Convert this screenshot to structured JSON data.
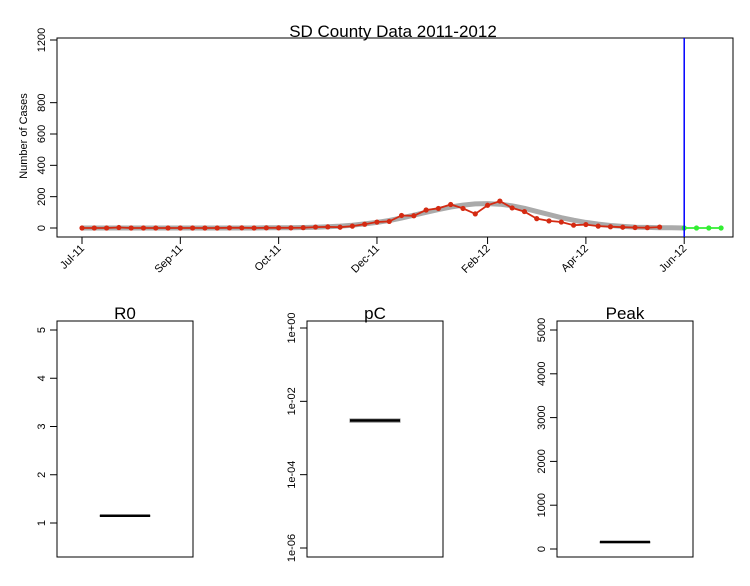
{
  "chart_data": [
    {
      "type": "line",
      "title": "SD County Data 2011-2012",
      "ylabel": "Number of Cases",
      "xlabel": "",
      "ylim": [
        0,
        1200
      ],
      "yticks": [
        0,
        200,
        400,
        600,
        800,
        1200
      ],
      "xticks": [
        "Jul-11",
        "Sep-11",
        "Oct-11",
        "Dec-11",
        "Feb-12",
        "Apr-12",
        "Jun-12"
      ],
      "xtick_week_index": [
        0,
        8,
        16,
        24,
        33,
        41,
        49
      ],
      "vline_week_index": 49,
      "series": [
        {
          "color": "#d42a12",
          "style": "line+points",
          "values": [
            0,
            0,
            0,
            3,
            0,
            0,
            0,
            0,
            0,
            0,
            0,
            0,
            1,
            1,
            0,
            1,
            1,
            1,
            2,
            6,
            7,
            5,
            12,
            24,
            38,
            42,
            80,
            78,
            115,
            125,
            150,
            125,
            90,
            145,
            172,
            128,
            105,
            60,
            45,
            38,
            18,
            22,
            12,
            8,
            5,
            3,
            2,
            6
          ]
        },
        {
          "color": "#aaaaaa",
          "style": "smooth-fit",
          "values": [
            0,
            0,
            0,
            0,
            0,
            0,
            0,
            0,
            0,
            0,
            0,
            0,
            0,
            0,
            0,
            1,
            1,
            2,
            3,
            5,
            8,
            12,
            18,
            26,
            36,
            48,
            64,
            82,
            100,
            118,
            134,
            146,
            154,
            156,
            152,
            142,
            126,
            106,
            86,
            66,
            50,
            36,
            25,
            16,
            10,
            6,
            4,
            2,
            1,
            0
          ]
        },
        {
          "color": "#33ee33",
          "style": "line+points",
          "values": [
            0,
            0,
            0,
            0
          ]
        }
      ]
    },
    {
      "type": "boxplot",
      "title": "R0",
      "ylim": [
        0.3,
        5.2
      ],
      "yticks": [
        "1",
        "2",
        "3",
        "4",
        "5"
      ],
      "median": 1.15,
      "q1": 1.14,
      "q3": 1.16
    },
    {
      "type": "boxplot",
      "title": "pC",
      "log_scale": true,
      "ylim_log10": [
        -6.1,
        0.05
      ],
      "yticks": [
        "1e-06",
        "1e-04",
        "1e-02",
        "1e+00"
      ],
      "median": 0.003,
      "q1": 0.0027,
      "q3": 0.0033
    },
    {
      "type": "boxplot",
      "title": "Peak",
      "ylim": [
        -50,
        5200
      ],
      "yticks": [
        "0",
        "1000",
        "2000",
        "3000",
        "4000",
        "5000"
      ],
      "median": 160,
      "q1": 155,
      "q3": 165
    }
  ]
}
